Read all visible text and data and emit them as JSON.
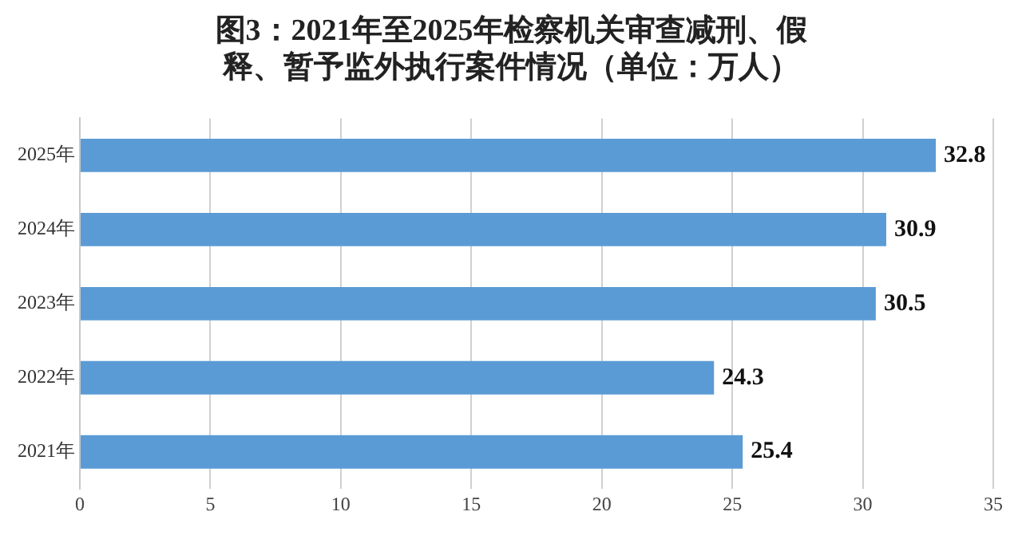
{
  "chart_data": {
    "type": "bar",
    "orientation": "horizontal",
    "title": "图3：2021年至2025年检察机关审查减刑、假释、暂予监外执行案件情况（单位：万人）",
    "categories": [
      "2025年",
      "2024年",
      "2023年",
      "2022年",
      "2021年"
    ],
    "values": [
      32.8,
      30.9,
      30.5,
      24.3,
      25.4
    ],
    "color": "#5b9bd5",
    "xlim": [
      0,
      35
    ],
    "xticks": [
      0,
      5,
      10,
      15,
      20,
      25,
      30,
      35
    ],
    "grid": "x",
    "data_labels": true
  }
}
